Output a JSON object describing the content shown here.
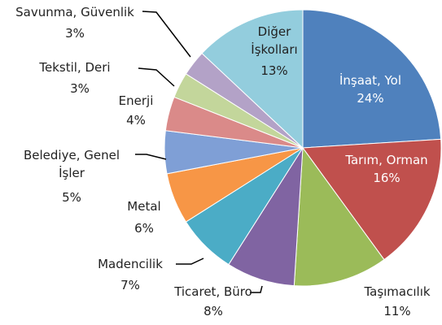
{
  "chart_data": {
    "type": "pie",
    "categories": [
      "İnşaat, Yol",
      "Tarım, Orman",
      "Taşımacılık",
      "Ticaret, Büro",
      "Madencilik",
      "Metal",
      "Belediye, Genel İşler",
      "Enerji",
      "Tekstil, Deri",
      "Savunma, Güvenlik",
      "Diğer İşkolları"
    ],
    "values": [
      24,
      16,
      11,
      8,
      7,
      6,
      5,
      4,
      3,
      3,
      13
    ],
    "value_labels": [
      "24%",
      "16%",
      "11%",
      "8%",
      "7%",
      "6%",
      "5%",
      "4%",
      "3%",
      "3%",
      "13%"
    ],
    "colors": [
      "#4f81bd",
      "#c0504d",
      "#9bbb59",
      "#8064a2",
      "#4bacc6",
      "#f79646",
      "#7f9fd6",
      "#da8a89",
      "#c3d69b",
      "#b3a2c7",
      "#93cddd"
    ]
  }
}
